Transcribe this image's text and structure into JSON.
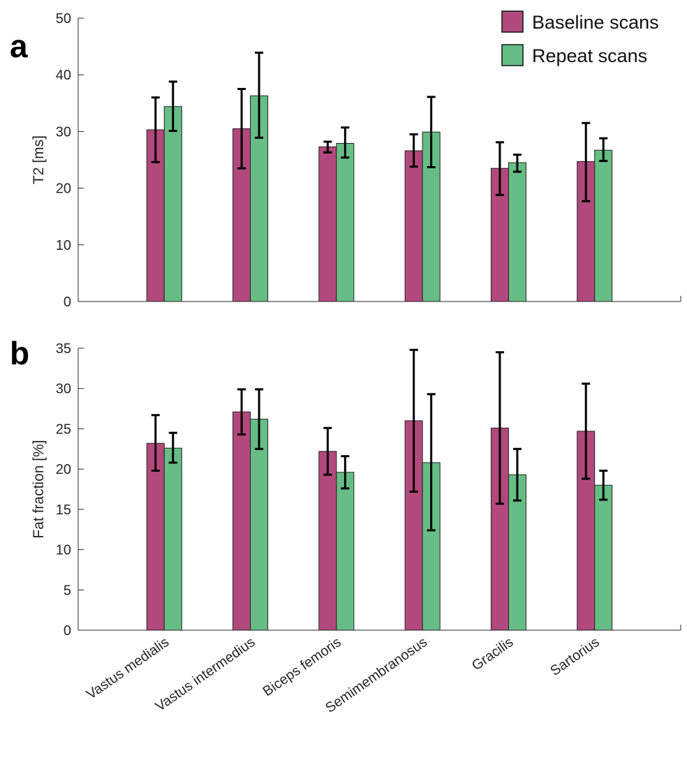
{
  "legend": {
    "placement": "top-right",
    "entries": [
      {
        "label": "Baseline scans",
        "color": "#b2497c"
      },
      {
        "label": "Repeat scans",
        "color": "#66bd85"
      }
    ]
  },
  "chart_data": [
    {
      "type": "bar",
      "panel_label": "a",
      "categories": [
        "Vastus medialis",
        "Vastus intermedius",
        "Biceps femoris",
        "Semimembranosus",
        "Gracilis",
        "Sartorius"
      ],
      "ylabel": "T2 [ms]",
      "ylim": [
        0,
        50
      ],
      "yticks": [
        0,
        10,
        20,
        30,
        40,
        50
      ],
      "xlim": [
        0,
        7
      ],
      "grid": false,
      "series": [
        {
          "name": "Baseline scans",
          "color": "#b2497c",
          "values": [
            30.3,
            30.5,
            27.3,
            26.6,
            23.5,
            24.7
          ],
          "err_low": [
            24.6,
            23.5,
            26.3,
            23.8,
            18.8,
            17.7
          ],
          "err_high": [
            36.0,
            37.5,
            28.2,
            29.5,
            28.1,
            31.5
          ]
        },
        {
          "name": "Repeat scans",
          "color": "#66bd85",
          "values": [
            34.4,
            36.3,
            27.9,
            29.9,
            24.5,
            26.7
          ],
          "err_low": [
            30.1,
            28.9,
            25.4,
            23.7,
            22.9,
            24.8
          ],
          "err_high": [
            38.8,
            43.9,
            30.7,
            36.1,
            25.9,
            28.8
          ]
        }
      ]
    },
    {
      "type": "bar",
      "panel_label": "b",
      "categories": [
        "Vastus medialis",
        "Vastus intermedius",
        "Biceps femoris",
        "Semimembranosus",
        "Gracilis",
        "Sartorius"
      ],
      "ylabel": "Fat fraction [%]",
      "ylim": [
        0,
        35
      ],
      "yticks": [
        0,
        5,
        10,
        15,
        20,
        25,
        30,
        35
      ],
      "xlim": [
        0,
        7
      ],
      "grid": false,
      "series": [
        {
          "name": "Baseline scans",
          "color": "#b2497c",
          "values": [
            23.2,
            27.1,
            22.2,
            26.0,
            25.1,
            24.7
          ],
          "err_low": [
            19.8,
            24.3,
            19.3,
            17.2,
            15.7,
            18.8
          ],
          "err_high": [
            26.7,
            29.9,
            25.1,
            34.8,
            34.5,
            30.6
          ]
        },
        {
          "name": "Repeat scans",
          "color": "#66bd85",
          "values": [
            22.6,
            26.2,
            19.6,
            20.8,
            19.3,
            18.0
          ],
          "err_low": [
            20.8,
            22.5,
            17.6,
            12.4,
            16.1,
            16.2
          ],
          "err_high": [
            24.5,
            29.9,
            21.6,
            29.3,
            22.5,
            19.8
          ]
        }
      ]
    }
  ]
}
